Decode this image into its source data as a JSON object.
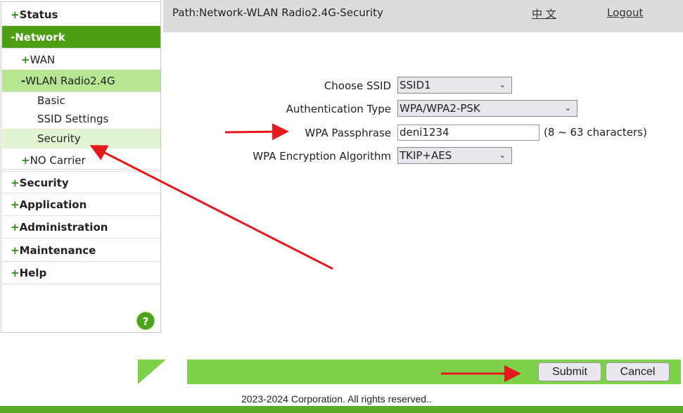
{
  "sidebar": {
    "items": [
      {
        "label": "Status",
        "prefix": "+"
      },
      {
        "label": "Network",
        "prefix": "-"
      },
      {
        "label": "WAN",
        "prefix": "+"
      },
      {
        "label": "WLAN Radio2.4G",
        "prefix": "-"
      },
      {
        "label": "Basic"
      },
      {
        "label": "SSID Settings"
      },
      {
        "label": "Security"
      },
      {
        "label": "NO Carrier",
        "prefix": "+"
      },
      {
        "label": "Security",
        "prefix": "+"
      },
      {
        "label": "Application",
        "prefix": "+"
      },
      {
        "label": "Administration",
        "prefix": "+"
      },
      {
        "label": "Maintenance",
        "prefix": "+"
      },
      {
        "label": "Help",
        "prefix": "+"
      }
    ],
    "help": "?"
  },
  "header": {
    "path": "Path:Network-WLAN Radio2.4G-Security",
    "language": "中 文",
    "logout": "Logout"
  },
  "form": {
    "ssid_label": "Choose SSID",
    "ssid_value": "SSID1",
    "auth_label": "Authentication Type",
    "auth_value": "WPA/WPA2-PSK",
    "pass_label": "WPA Passphrase",
    "pass_value": "deni1234",
    "pass_hint": "(8 ~ 63 characters)",
    "enc_label": "WPA Encryption Algorithm",
    "enc_value": "TKIP+AES"
  },
  "buttons": {
    "submit": "Submit",
    "cancel": "Cancel"
  },
  "footer": {
    "copyright": "2023-2024 Corporation. All rights reserved.."
  },
  "colors": {
    "accent": "#4c9e12",
    "bar": "#7ed24a",
    "annotation": "#e3191c"
  }
}
